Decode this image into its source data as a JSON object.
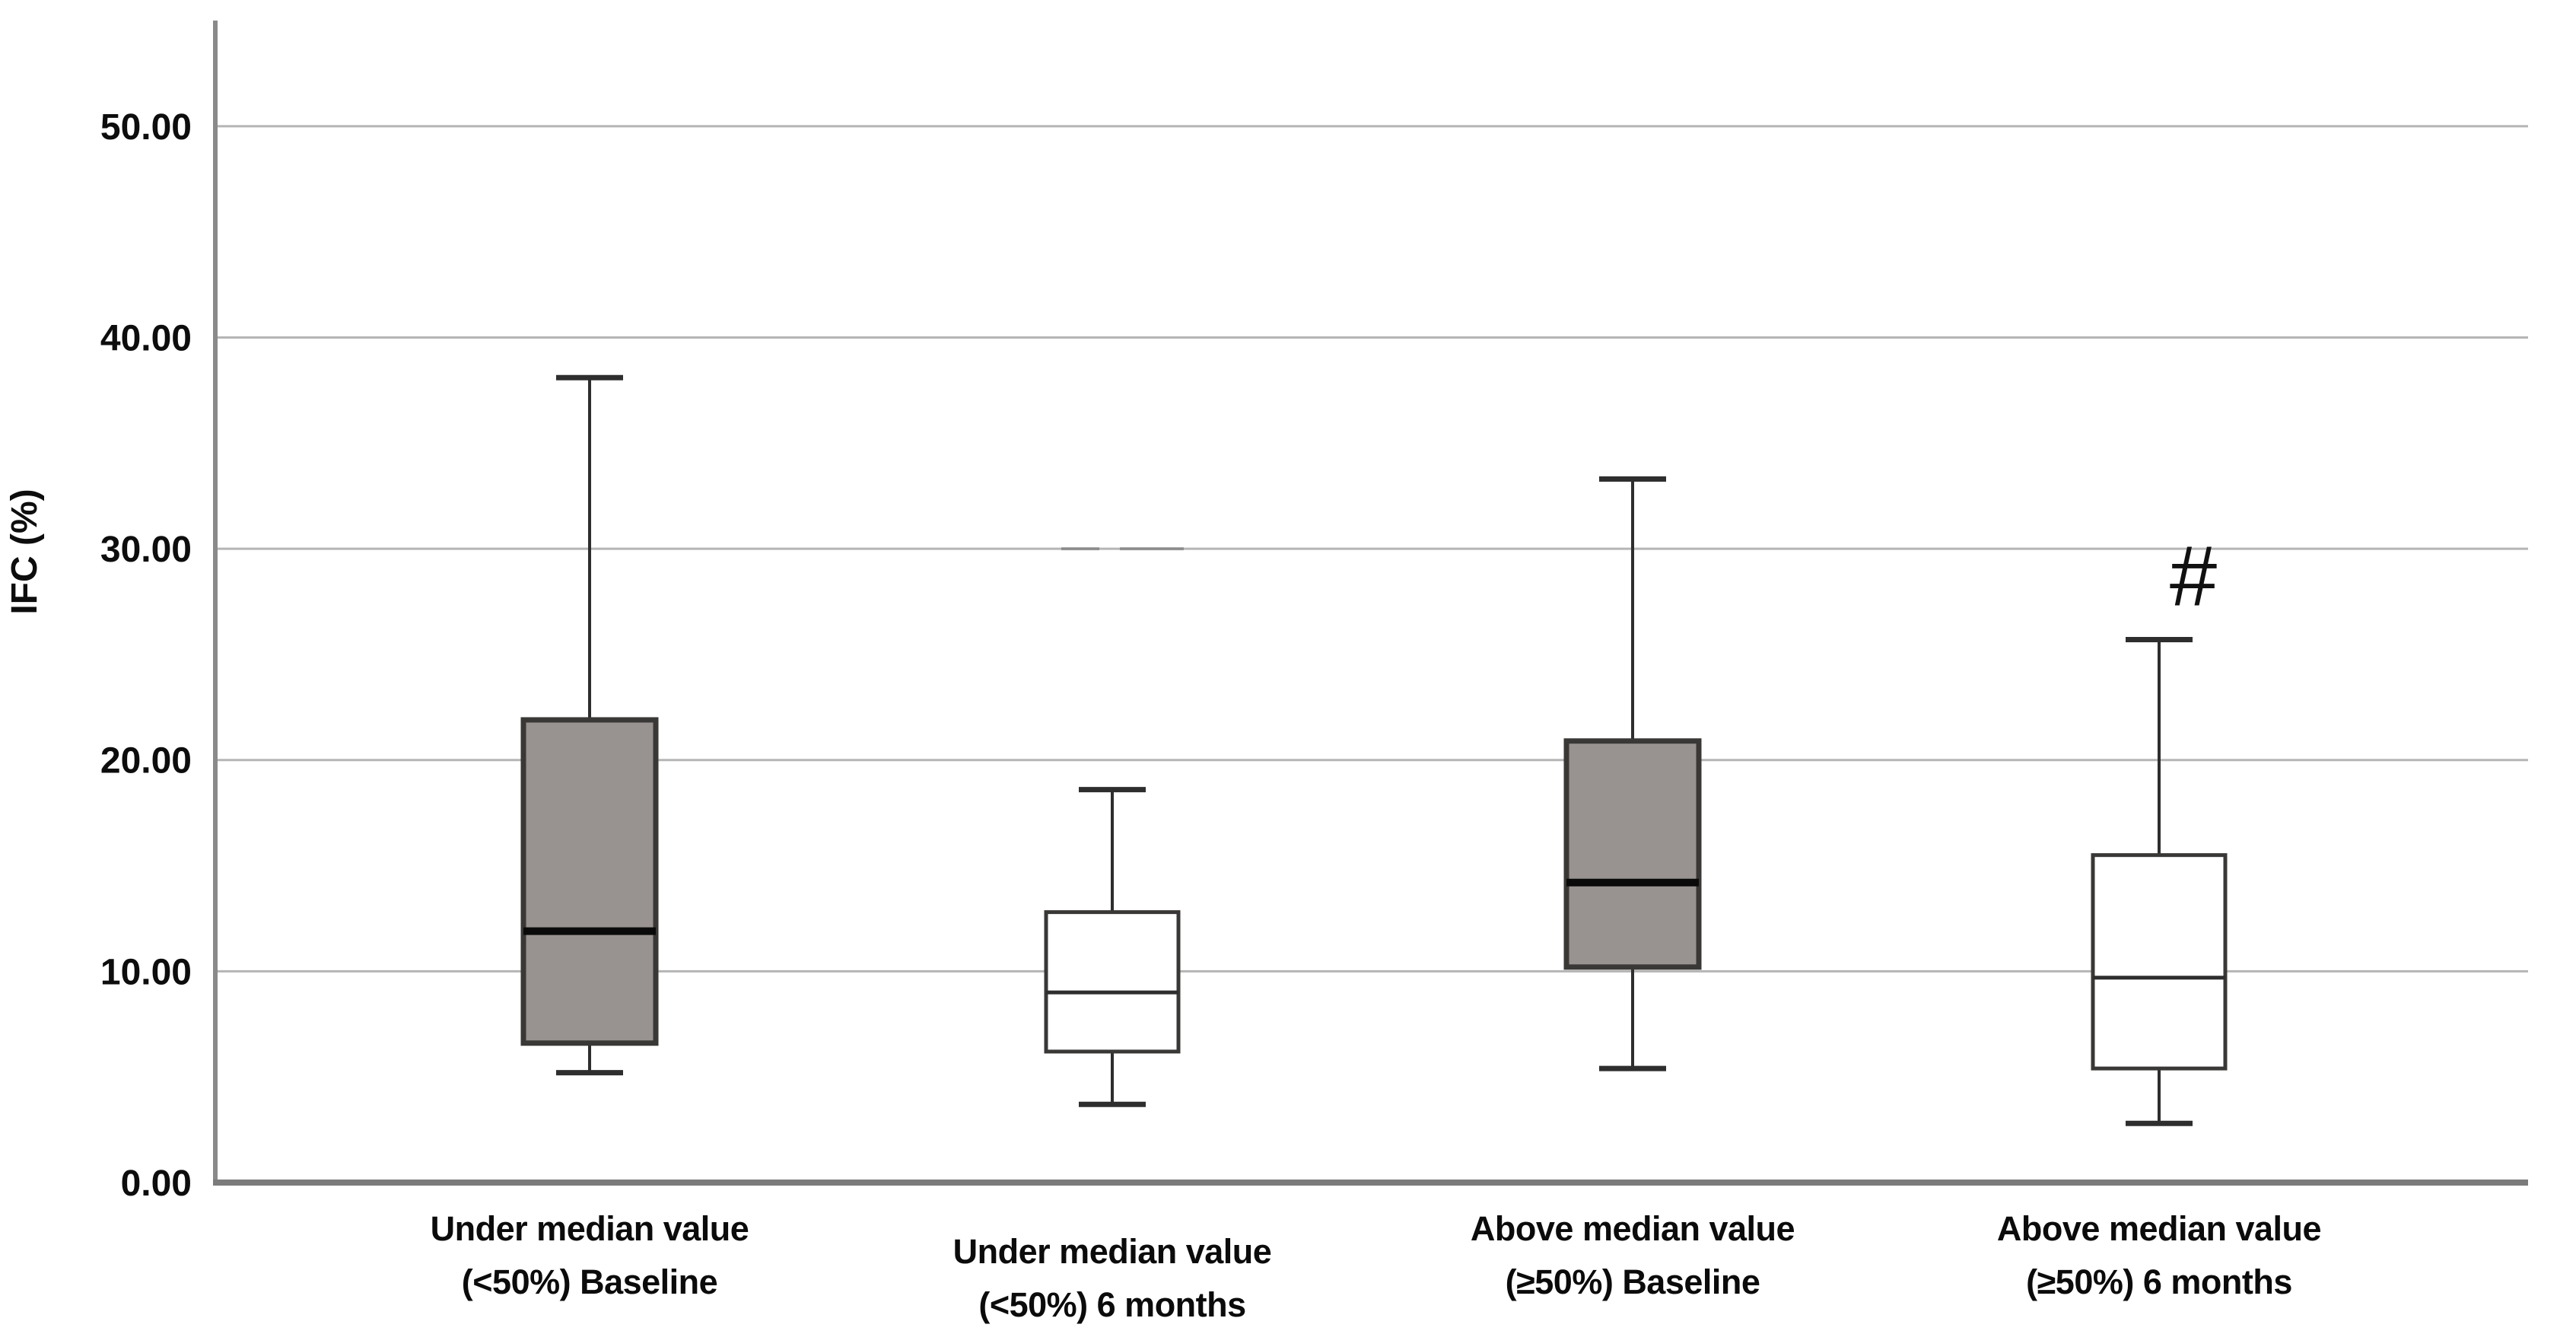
{
  "figure": {
    "background": "#ffffff"
  },
  "colors": {
    "box_fill_gray": "#989290",
    "box_fill_white": "#ffffff",
    "box_border": "#3a3836",
    "whisker": "#2e2e2e",
    "median_gray_box": "#0a0a0a",
    "median_white_box": "#2e2e2e",
    "gridline": "#b5b5b5",
    "y_axis_line": "#8a8a8a",
    "x_axis_line": "#7b7b7b",
    "text": "#0d0d0d",
    "artifact_smudge": "#6a6a6a"
  },
  "chart_data": {
    "type": "boxplot",
    "title": "",
    "ylabel": "IFC (%)",
    "xlabel": "",
    "ylim": [
      0,
      55
    ],
    "grid": true,
    "legend": "none",
    "yticks": [
      0,
      10,
      20,
      30,
      40,
      50
    ],
    "ytick_labels": [
      "0.00",
      "10.00",
      "20.00",
      "30.00",
      "40.00",
      "50.00"
    ],
    "categories": [
      "Under median value (<50%) Baseline",
      "Under median value (<50%) 6 months",
      "Above median value (≥50%) Baseline",
      "Above median value (≥50%) 6 months"
    ],
    "series": [
      {
        "name": "Under median value (<50%) Baseline",
        "label_line1": "Under median value",
        "label_line2": "(<50%) Baseline",
        "fill": "#989290",
        "whisker_low": 5.2,
        "q1": 6.6,
        "median": 11.9,
        "q3": 21.9,
        "whisker_high": 38.1,
        "annotation": ""
      },
      {
        "name": "Under median value (<50%) 6 months",
        "label_line1": "Under median value",
        "label_line2": "(<50%) 6 months",
        "fill": "#ffffff",
        "whisker_low": 3.7,
        "q1": 6.2,
        "median": 9.0,
        "q3": 12.8,
        "whisker_high": 18.6,
        "annotation": ""
      },
      {
        "name": "Above median value (≥50%) Baseline",
        "label_line1": "Above median value",
        "label_line2": "(≥50%) Baseline",
        "fill": "#989290",
        "whisker_low": 5.4,
        "q1": 10.2,
        "median": 14.2,
        "q3": 20.9,
        "whisker_high": 33.3,
        "annotation": ""
      },
      {
        "name": "Above median value (≥50%) 6 months",
        "label_line1": "Above median value",
        "label_line2": "(≥50%) 6 months",
        "fill": "#ffffff",
        "whisker_low": 2.8,
        "q1": 5.4,
        "median": 9.7,
        "q3": 15.5,
        "whisker_high": 25.7,
        "annotation": "#"
      }
    ]
  }
}
